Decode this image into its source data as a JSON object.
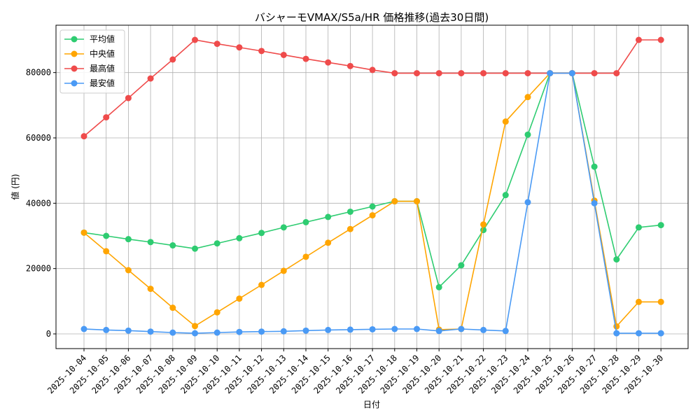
{
  "chart_data": {
    "type": "line",
    "title": "バシャーモVMAX/S5a/HR 価格推移(過去30日間)",
    "xlabel": "日付",
    "ylabel": "値 (円)",
    "ylim": [
      -4500,
      94500
    ],
    "yticks": [
      0,
      20000,
      40000,
      60000,
      80000
    ],
    "grid": true,
    "legend_position": "top-left",
    "x": [
      "2025-10-04",
      "2025-10-05",
      "2025-10-06",
      "2025-10-07",
      "2025-10-08",
      "2025-10-09",
      "2025-10-10",
      "2025-10-11",
      "2025-10-12",
      "2025-10-13",
      "2025-10-14",
      "2025-10-15",
      "2025-10-16",
      "2025-10-17",
      "2025-10-18",
      "2025-10-19",
      "2025-10-20",
      "2025-10-21",
      "2025-10-22",
      "2025-10-23",
      "2025-10-24",
      "2025-10-25",
      "2025-10-26",
      "2025-10-27",
      "2025-10-28",
      "2025-10-29",
      "2025-10-30"
    ],
    "series": [
      {
        "name": "平均値",
        "color": "#2ecc71",
        "values": [
          31000,
          30000,
          29000,
          28100,
          27100,
          26100,
          27700,
          29300,
          30900,
          32600,
          34200,
          35800,
          37400,
          39000,
          40600,
          40600,
          14300,
          21000,
          31800,
          42500,
          61000,
          79800,
          79800,
          51200,
          22800,
          32600,
          33300
        ]
      },
      {
        "name": "中央値",
        "color": "#ffa500",
        "values": [
          31000,
          25300,
          19500,
          13800,
          8000,
          2400,
          6600,
          10800,
          15000,
          19300,
          23600,
          27900,
          32100,
          36300,
          40600,
          40600,
          1300,
          1500,
          33500,
          65000,
          72500,
          79800,
          79800,
          40800,
          2300,
          9800,
          9800
        ]
      },
      {
        "name": "最高値",
        "color": "#ef4b4b",
        "values": [
          60500,
          66300,
          72200,
          78200,
          84000,
          90000,
          88800,
          87700,
          86600,
          85400,
          84200,
          83100,
          82000,
          80800,
          79800,
          79800,
          79800,
          79800,
          79800,
          79800,
          79800,
          79800,
          79800,
          79800,
          79800,
          90000,
          90000
        ]
      },
      {
        "name": "最安値",
        "color": "#4a9af5",
        "values": [
          1500,
          1200,
          1000,
          700,
          400,
          200,
          400,
          600,
          700,
          800,
          1000,
          1200,
          1300,
          1400,
          1500,
          1500,
          900,
          1500,
          1200,
          900,
          40300,
          79800,
          79800,
          40000,
          200,
          200,
          200
        ]
      }
    ]
  }
}
